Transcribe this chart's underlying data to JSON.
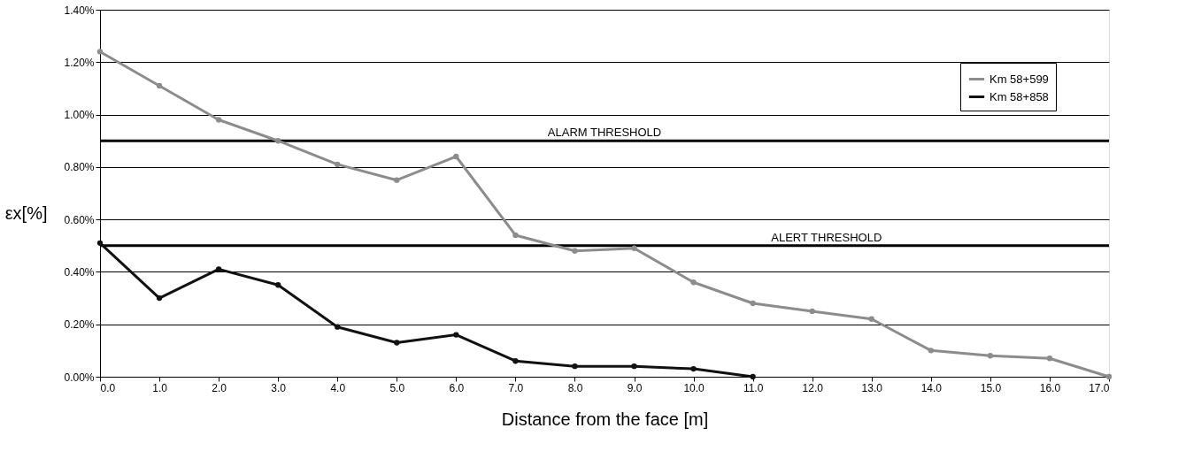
{
  "chart_data": {
    "type": "line",
    "xlabel": "Distance from the face [m]",
    "ylabel": "εx[%]",
    "x": [
      0,
      1,
      2,
      3,
      4,
      5,
      6,
      7,
      8,
      9,
      10,
      11,
      12,
      13,
      14,
      15,
      16,
      17
    ],
    "series": [
      {
        "name": "Km 58+599",
        "color": "#8c8c8c",
        "values": [
          1.24,
          1.11,
          0.98,
          0.9,
          0.81,
          0.75,
          0.84,
          0.54,
          0.48,
          0.49,
          0.36,
          0.28,
          0.25,
          0.22,
          0.1,
          0.08,
          0.07,
          0.0
        ]
      },
      {
        "name": "Km 58+858",
        "color": "#111111",
        "values": [
          0.51,
          0.3,
          0.41,
          0.35,
          0.19,
          0.13,
          0.16,
          0.06,
          0.04,
          0.04,
          0.03,
          0.0,
          null,
          null,
          null,
          null,
          null,
          null
        ]
      }
    ],
    "xlim": [
      0,
      17
    ],
    "xticks": [
      {
        "value": 0,
        "label": "0.0"
      },
      {
        "value": 1,
        "label": "1.0"
      },
      {
        "value": 2,
        "label": "2.0"
      },
      {
        "value": 3,
        "label": "3.0"
      },
      {
        "value": 4,
        "label": "4.0"
      },
      {
        "value": 5,
        "label": "5.0"
      },
      {
        "value": 6,
        "label": "6.0"
      },
      {
        "value": 7,
        "label": "7.0"
      },
      {
        "value": 8,
        "label": "8.0"
      },
      {
        "value": 9,
        "label": "9.0"
      },
      {
        "value": 10,
        "label": "10.0"
      },
      {
        "value": 11,
        "label": "11.0"
      },
      {
        "value": 12,
        "label": "12.0"
      },
      {
        "value": 13,
        "label": "13.0"
      },
      {
        "value": 14,
        "label": "14.0"
      },
      {
        "value": 15,
        "label": "15.0"
      },
      {
        "value": 16,
        "label": "16.0"
      },
      {
        "value": 17,
        "label": "17.0"
      }
    ],
    "ylim": [
      0,
      1.4
    ],
    "yticks": [
      {
        "value": 0,
        "label": "0.00%"
      },
      {
        "value": 0.2,
        "label": "0.20%"
      },
      {
        "value": 0.4,
        "label": "0.40%"
      },
      {
        "value": 0.6,
        "label": "0.60%"
      },
      {
        "value": 0.8,
        "label": "0.80%"
      },
      {
        "value": 1.0,
        "label": "1.00%"
      },
      {
        "value": 1.2,
        "label": "1.20%"
      },
      {
        "value": 1.4,
        "label": "1.40%"
      }
    ],
    "ref_lines": [
      {
        "axis": "y",
        "value": 0.9,
        "label": "ALARM THRESHOLD",
        "color": "#000000"
      },
      {
        "axis": "y",
        "value": 0.5,
        "label": "ALERT THRESHOLD",
        "color": "#000000"
      }
    ],
    "grid": "y",
    "legend": "top right",
    "marker": "circle",
    "line_style": "solid"
  }
}
